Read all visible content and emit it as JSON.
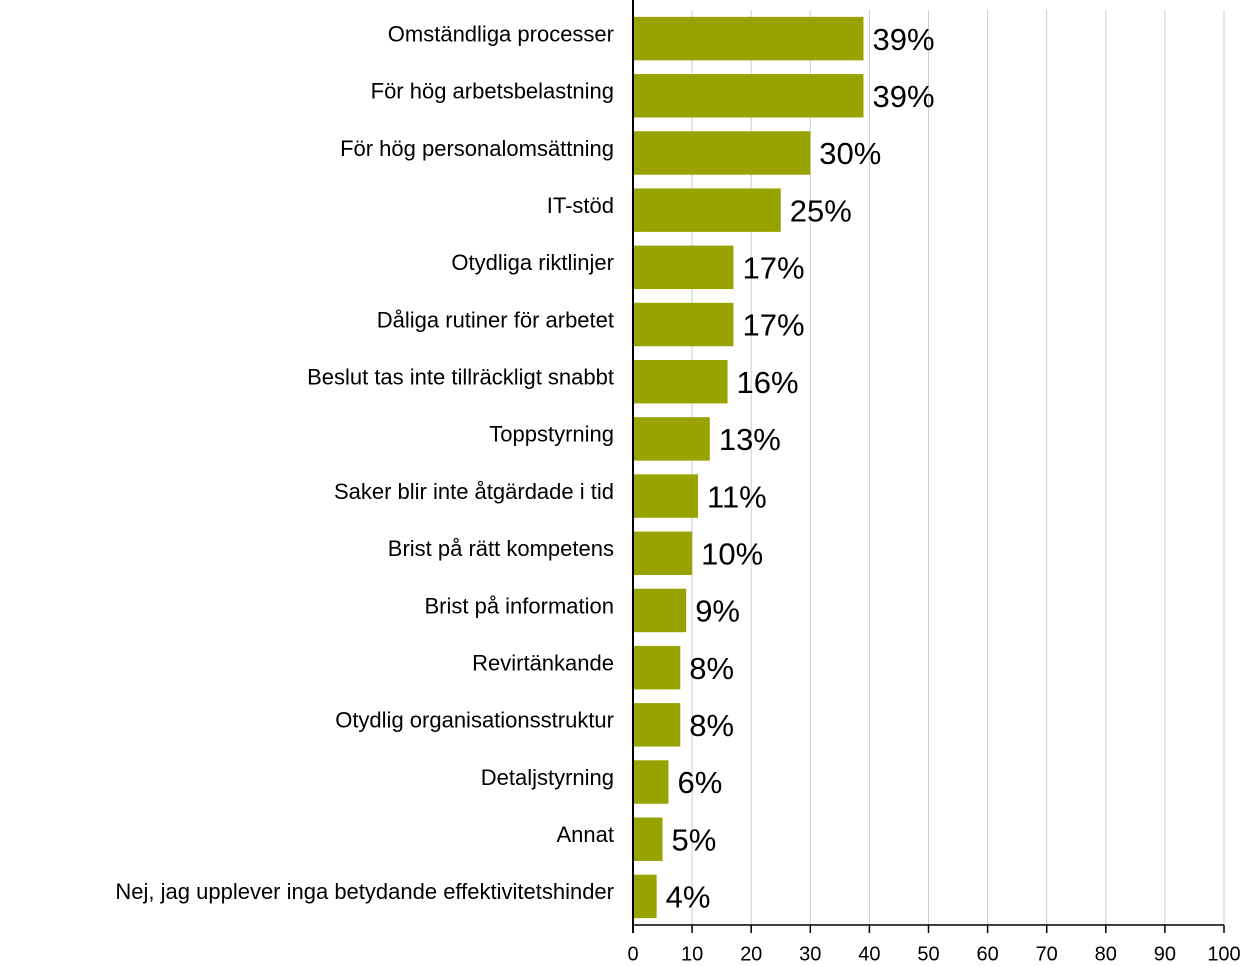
{
  "chart_data": {
    "type": "bar",
    "orientation": "horizontal",
    "categories": [
      "Omständliga processer",
      "För hög arbetsbelastning",
      "För hög personalomsättning",
      "IT-stöd",
      "Otydliga riktlinjer",
      "Dåliga rutiner för arbetet",
      "Beslut tas inte tillräckligt snabbt",
      "Toppstyrning",
      "Saker blir inte åtgärdade i tid",
      "Brist på rätt kompetens",
      "Brist på information",
      "Revirtänkande",
      "Otydlig organisationsstruktur",
      "Detaljstyrning",
      "Annat",
      "Nej, jag upplever inga betydande effektivitetshinder"
    ],
    "values": [
      39,
      39,
      30,
      25,
      17,
      17,
      16,
      13,
      11,
      10,
      9,
      8,
      8,
      6,
      5,
      4
    ],
    "value_labels": [
      "39%",
      "39%",
      "30%",
      "25%",
      "17%",
      "17%",
      "16%",
      "13%",
      "11%",
      "10%",
      "9%",
      "8%",
      "8%",
      "6%",
      "5%",
      "4%"
    ],
    "color": "#99a300",
    "xlim": [
      0,
      100
    ],
    "xticks": [
      0,
      10,
      20,
      30,
      40,
      50,
      60,
      70,
      80,
      90,
      100
    ],
    "grid": true
  }
}
